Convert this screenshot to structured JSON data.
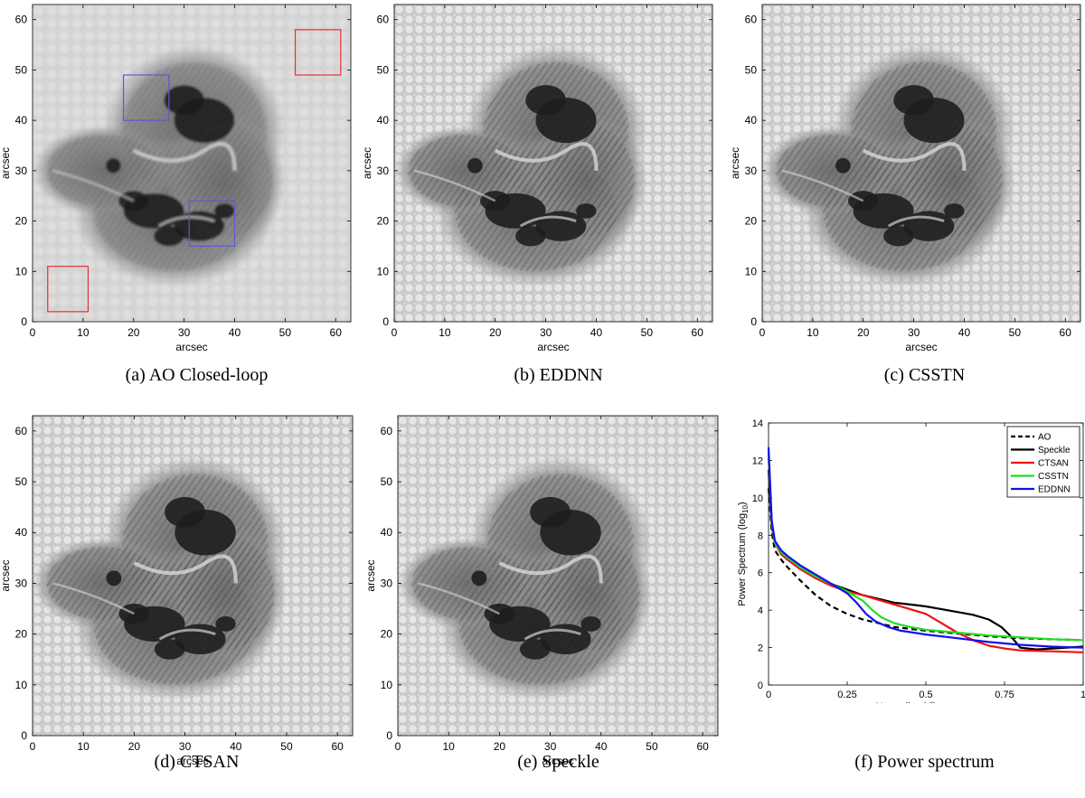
{
  "panels": [
    {
      "id": "a",
      "caption": "(a)  AO Closed-loop",
      "ylabel": "arcsec",
      "xlabel": "arcsec",
      "style": "ao",
      "xticks": [
        "0",
        "10",
        "20",
        "30",
        "40",
        "50",
        "60"
      ],
      "yticks": [
        "0",
        "10",
        "20",
        "30",
        "40",
        "50",
        "60"
      ],
      "annotations": {
        "red_boxes": [
          [
            3,
            2,
            11,
            11
          ],
          [
            52,
            49,
            61,
            58
          ]
        ],
        "blue_boxes": [
          [
            18,
            40,
            27,
            49
          ],
          [
            31,
            15,
            40,
            24
          ]
        ],
        "red_color": "#e53030",
        "blue_color": "#5a5ad0"
      }
    },
    {
      "id": "b",
      "caption": "(b)  EDDNN",
      "ylabel": "arcsec",
      "xlabel": "arcsec",
      "style": "sharp",
      "xticks": [
        "0",
        "10",
        "20",
        "30",
        "40",
        "50",
        "60"
      ],
      "yticks": [
        "0",
        "10",
        "20",
        "30",
        "40",
        "50",
        "60"
      ]
    },
    {
      "id": "c",
      "caption": "(c)  CSSTN",
      "ylabel": "arcsec",
      "xlabel": "arcsec",
      "style": "sharp",
      "xticks": [
        "0",
        "10",
        "20",
        "30",
        "40",
        "50",
        "60"
      ],
      "yticks": [
        "0",
        "10",
        "20",
        "30",
        "40",
        "50",
        "60"
      ]
    },
    {
      "id": "d",
      "caption": "(d)  CTSAN",
      "ylabel": "arcsec",
      "xlabel": "arcsec",
      "style": "sharp",
      "xticks": [
        "0",
        "10",
        "20",
        "30",
        "40",
        "50",
        "60"
      ],
      "yticks": [
        "0",
        "10",
        "20",
        "30",
        "40",
        "50",
        "60"
      ]
    },
    {
      "id": "e",
      "caption": "(e)  Speckle",
      "ylabel": "arcsec",
      "xlabel": "arcsec",
      "style": "sharp",
      "xticks": [
        "0",
        "10",
        "20",
        "30",
        "40",
        "50",
        "60"
      ],
      "yticks": [
        "0",
        "10",
        "20",
        "30",
        "40",
        "50",
        "60"
      ]
    }
  ],
  "spectrum_caption": "(f)  Power spectrum",
  "chart_data": {
    "type": "line",
    "xlabel": "Normalized Frequency",
    "ylabel_main": "Power Spectrum (log",
    "ylabel_sub": "10",
    "ylabel_end": ")",
    "xlim": [
      0,
      1
    ],
    "ylim": [
      0,
      14
    ],
    "xticks": [
      {
        "v": 0,
        "l": "0"
      },
      {
        "v": 0.25,
        "l": "0.25"
      },
      {
        "v": 0.5,
        "l": "0.5"
      },
      {
        "v": 0.75,
        "l": "0.75"
      },
      {
        "v": 1,
        "l": "1"
      }
    ],
    "yticks": [
      {
        "v": 0,
        "l": "0"
      },
      {
        "v": 2,
        "l": "2"
      },
      {
        "v": 4,
        "l": "4"
      },
      {
        "v": 6,
        "l": "6"
      },
      {
        "v": 8,
        "l": "8"
      },
      {
        "v": 10,
        "l": "10"
      },
      {
        "v": 12,
        "l": "12"
      },
      {
        "v": 14,
        "l": "14"
      }
    ],
    "legend_position": "top-right",
    "series": [
      {
        "name": "AO",
        "color": "#000000",
        "dash": true,
        "x": [
          0,
          0.01,
          0.02,
          0.04,
          0.06,
          0.1,
          0.15,
          0.2,
          0.25,
          0.3,
          0.35,
          0.4,
          0.45,
          0.5,
          0.6,
          0.7,
          0.8,
          0.9,
          1.0
        ],
        "y": [
          10.5,
          8.2,
          7.2,
          6.7,
          6.3,
          5.6,
          4.8,
          4.2,
          3.8,
          3.5,
          3.3,
          3.1,
          3.0,
          2.9,
          2.75,
          2.6,
          2.5,
          2.45,
          2.4
        ]
      },
      {
        "name": "Speckle",
        "color": "#000000",
        "dash": false,
        "x": [
          0,
          0.01,
          0.02,
          0.04,
          0.06,
          0.1,
          0.15,
          0.2,
          0.25,
          0.3,
          0.35,
          0.4,
          0.45,
          0.5,
          0.55,
          0.6,
          0.65,
          0.7,
          0.74,
          0.77,
          0.8,
          0.85,
          0.9,
          1.0
        ],
        "y": [
          11.5,
          8.5,
          7.6,
          7.0,
          6.7,
          6.3,
          5.8,
          5.4,
          5.1,
          4.8,
          4.6,
          4.4,
          4.3,
          4.2,
          4.05,
          3.9,
          3.75,
          3.5,
          3.1,
          2.6,
          2.0,
          1.9,
          1.95,
          2.05
        ]
      },
      {
        "name": "CTSAN",
        "color": "#ee1111",
        "dash": false,
        "x": [
          0,
          0.01,
          0.02,
          0.04,
          0.06,
          0.1,
          0.15,
          0.2,
          0.25,
          0.3,
          0.35,
          0.4,
          0.45,
          0.5,
          0.55,
          0.6,
          0.65,
          0.7,
          0.75,
          0.8,
          0.9,
          1.0
        ],
        "y": [
          12.2,
          8.6,
          7.6,
          7.0,
          6.7,
          6.2,
          5.7,
          5.3,
          5.0,
          4.8,
          4.55,
          4.3,
          4.05,
          3.8,
          3.3,
          2.8,
          2.4,
          2.1,
          1.95,
          1.85,
          1.8,
          1.75
        ]
      },
      {
        "name": "CSSTN",
        "color": "#22dd22",
        "dash": false,
        "x": [
          0,
          0.01,
          0.02,
          0.04,
          0.06,
          0.1,
          0.15,
          0.2,
          0.25,
          0.3,
          0.33,
          0.36,
          0.4,
          0.45,
          0.5,
          0.6,
          0.7,
          0.8,
          0.9,
          1.0
        ],
        "y": [
          12.4,
          8.7,
          7.6,
          7.1,
          6.8,
          6.3,
          5.8,
          5.4,
          5.0,
          4.5,
          4.0,
          3.6,
          3.3,
          3.1,
          2.95,
          2.8,
          2.65,
          2.55,
          2.45,
          2.4
        ]
      },
      {
        "name": "EDDNN",
        "color": "#1111ee",
        "dash": false,
        "x": [
          0,
          0.01,
          0.02,
          0.04,
          0.06,
          0.1,
          0.15,
          0.2,
          0.25,
          0.28,
          0.31,
          0.34,
          0.38,
          0.42,
          0.5,
          0.6,
          0.7,
          0.8,
          0.9,
          1.0
        ],
        "y": [
          12.7,
          8.8,
          7.7,
          7.2,
          6.9,
          6.4,
          5.9,
          5.4,
          4.9,
          4.4,
          3.8,
          3.4,
          3.1,
          2.9,
          2.7,
          2.5,
          2.3,
          2.15,
          2.05,
          2.0
        ]
      }
    ]
  }
}
